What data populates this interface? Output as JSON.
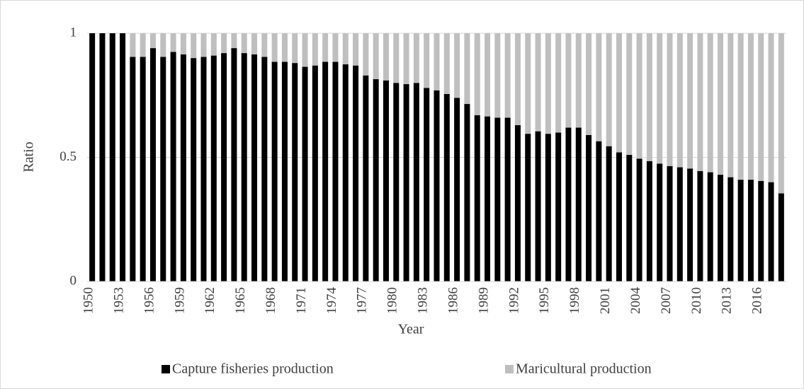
{
  "chart_data": {
    "type": "stacked_bar",
    "x_label": "Year",
    "y_label": "Ratio",
    "categories": [
      1950,
      null,
      null,
      1953,
      null,
      null,
      1956,
      null,
      null,
      1959,
      null,
      null,
      1962,
      null,
      null,
      1965,
      null,
      null,
      1968,
      null,
      null,
      1971,
      null,
      null,
      1974,
      null,
      null,
      1977,
      null,
      null,
      1980,
      null,
      null,
      1983,
      null,
      null,
      1986,
      null,
      null,
      1989,
      null,
      null,
      1992,
      null,
      null,
      1995,
      null,
      null,
      1998,
      null,
      null,
      2001,
      null,
      null,
      2004,
      null,
      null,
      2007,
      null,
      null,
      2010,
      null,
      null,
      2013,
      null,
      null,
      2016,
      null,
      null
    ],
    "series": [
      {
        "name": "Capture fisheries production",
        "color": "#000000",
        "values": [
          1,
          1,
          1,
          1,
          0.905,
          0.905,
          0.94,
          0.905,
          0.925,
          0.915,
          0.9,
          0.905,
          0.91,
          0.92,
          0.94,
          0.92,
          0.915,
          0.905,
          0.885,
          0.885,
          0.88,
          0.865,
          0.87,
          0.885,
          0.885,
          0.875,
          0.87,
          0.83,
          0.815,
          0.81,
          0.8,
          0.795,
          0.8,
          0.78,
          0.77,
          0.755,
          0.74,
          0.715,
          0.67,
          0.665,
          0.66,
          0.66,
          0.63,
          0.595,
          0.605,
          0.595,
          0.6,
          0.62,
          0.62,
          0.59,
          0.565,
          0.545,
          0.52,
          0.51,
          0.495,
          0.485,
          0.475,
          0.465,
          0.46,
          0.455,
          0.445,
          0.44,
          0.43,
          0.42,
          0.41,
          0.41,
          0.405,
          0.4,
          0.355
        ]
      },
      {
        "name": "Maricultural production",
        "color": "#bfbfbf",
        "values": [
          0,
          0,
          0,
          0,
          0.095,
          0.095,
          0.06,
          0.095,
          0.075,
          0.085,
          0.1,
          0.095,
          0.09,
          0.08,
          0.06,
          0.08,
          0.085,
          0.095,
          0.115,
          0.115,
          0.12,
          0.135,
          0.13,
          0.115,
          0.115,
          0.125,
          0.13,
          0.17,
          0.185,
          0.19,
          0.2,
          0.205,
          0.2,
          0.22,
          0.23,
          0.245,
          0.26,
          0.285,
          0.33,
          0.335,
          0.34,
          0.34,
          0.37,
          0.405,
          0.395,
          0.405,
          0.4,
          0.38,
          0.38,
          0.41,
          0.435,
          0.455,
          0.48,
          0.49,
          0.505,
          0.515,
          0.525,
          0.535,
          0.54,
          0.545,
          0.555,
          0.56,
          0.57,
          0.58,
          0.59,
          0.59,
          0.595,
          0.6,
          0.645
        ]
      }
    ],
    "ylim": [
      0,
      1
    ],
    "yticks": [
      0,
      0.5,
      1
    ],
    "grid": true,
    "legend": "bottom"
  }
}
